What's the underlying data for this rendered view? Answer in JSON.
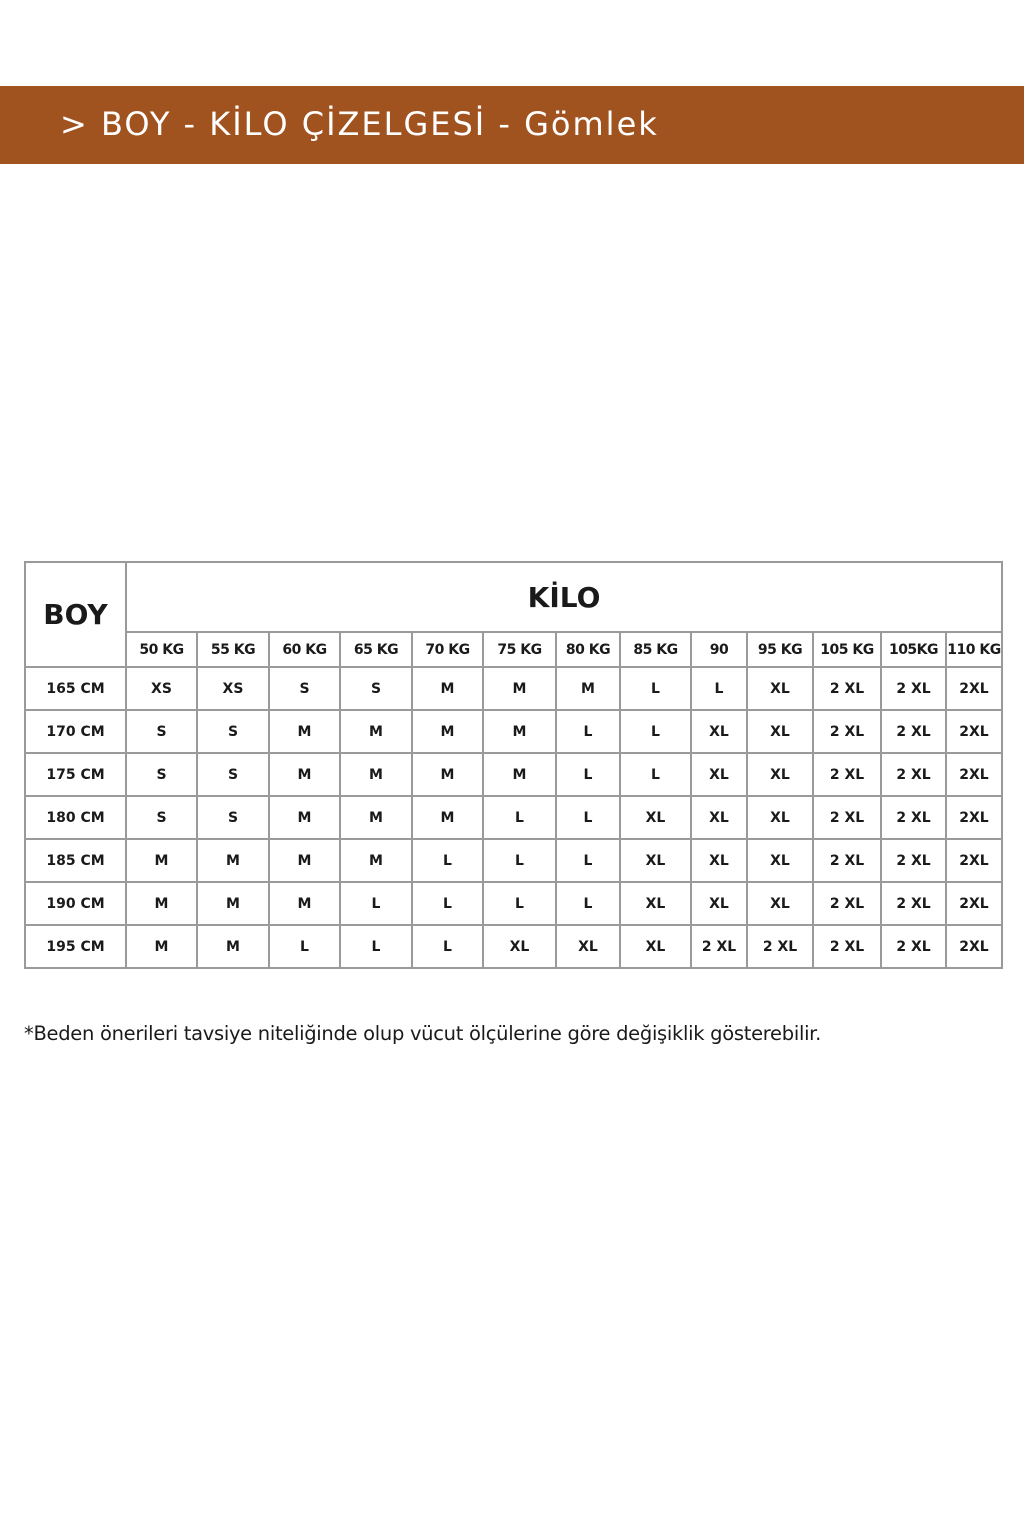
{
  "header": {
    "title": "> BOY - KİLO ÇİZELGESİ - Gömlek",
    "background_color": "#A0531F"
  },
  "table": {
    "row_header": "BOY",
    "col_group_header": "KİLO",
    "columns": [
      "50 KG",
      "55 KG",
      "60 KG",
      "65 KG",
      "70 KG",
      "75 KG",
      "80 KG",
      "85 KG",
      "90",
      "95 KG",
      "105 KG",
      "105KG",
      "110 KG"
    ],
    "rows": [
      {
        "boy": "165 CM",
        "sizes": [
          "XS",
          "XS",
          "S",
          "S",
          "M",
          "M",
          "M",
          "L",
          "L",
          "XL",
          "2 XL",
          "2 XL",
          "2XL"
        ]
      },
      {
        "boy": "170 CM",
        "sizes": [
          "S",
          "S",
          "M",
          "M",
          "M",
          "M",
          "L",
          "L",
          "XL",
          "XL",
          "2 XL",
          "2 XL",
          "2XL"
        ]
      },
      {
        "boy": "175 CM",
        "sizes": [
          "S",
          "S",
          "M",
          "M",
          "M",
          "M",
          "L",
          "L",
          "XL",
          "XL",
          "2 XL",
          "2 XL",
          "2XL"
        ]
      },
      {
        "boy": "180 CM",
        "sizes": [
          "S",
          "S",
          "M",
          "M",
          "M",
          "L",
          "L",
          "XL",
          "XL",
          "XL",
          "2 XL",
          "2 XL",
          "2XL"
        ]
      },
      {
        "boy": "185 CM",
        "sizes": [
          "M",
          "M",
          "M",
          "M",
          "L",
          "L",
          "L",
          "XL",
          "XL",
          "XL",
          "2 XL",
          "2 XL",
          "2XL"
        ]
      },
      {
        "boy": "190 CM",
        "sizes": [
          "M",
          "M",
          "M",
          "L",
          "L",
          "L",
          "L",
          "XL",
          "XL",
          "XL",
          "2 XL",
          "2 XL",
          "2XL"
        ]
      },
      {
        "boy": "195 CM",
        "sizes": [
          "M",
          "M",
          "L",
          "L",
          "L",
          "XL",
          "XL",
          "XL",
          "2 XL",
          "2 XL",
          "2 XL",
          "2 XL",
          "2XL"
        ]
      }
    ]
  },
  "footnote": "*Beden önerileri tavsiye niteliğinde olup vücut ölçülerine göre değişiklik gösterebilir."
}
